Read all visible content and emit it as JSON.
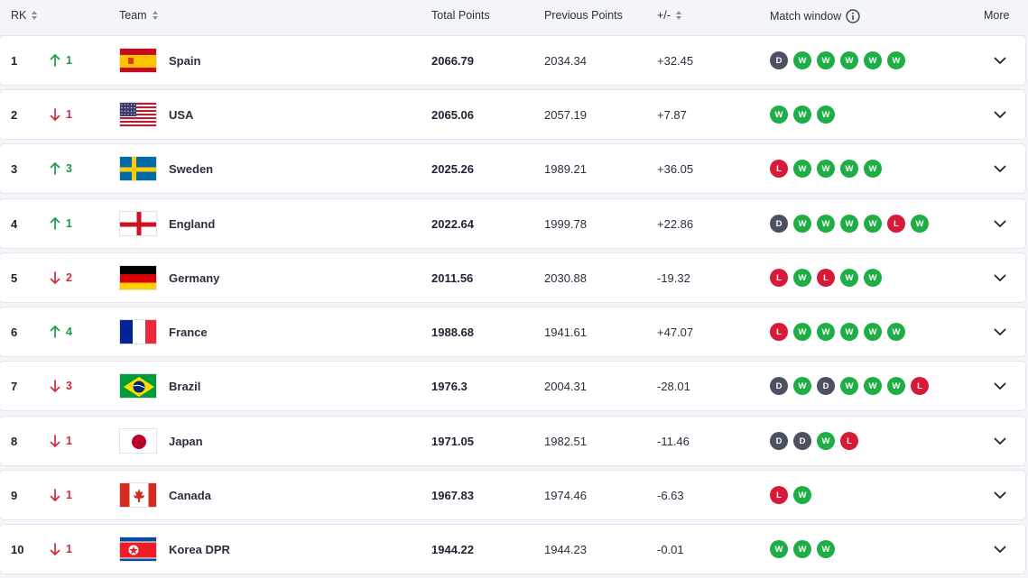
{
  "header": {
    "rank": "RK",
    "team": "Team",
    "total": "Total Points",
    "previous": "Previous Points",
    "diff": "+/-",
    "match_window": "Match window",
    "more": "More"
  },
  "colors": {
    "win": "#1fae45",
    "draw": "#4b5160",
    "loss": "#d61a37",
    "up": "#1a9a48",
    "down": "#d1283b"
  },
  "rows": [
    {
      "rank": "1",
      "dir": "up",
      "move": "1",
      "team": "Spain",
      "flag": "spain",
      "total": "2066.79",
      "previous": "2034.34",
      "diff": "+32.45",
      "results": [
        "D",
        "W",
        "W",
        "W",
        "W",
        "W"
      ]
    },
    {
      "rank": "2",
      "dir": "down",
      "move": "1",
      "team": "USA",
      "flag": "usa",
      "total": "2065.06",
      "previous": "2057.19",
      "diff": "+7.87",
      "results": [
        "W",
        "W",
        "W"
      ]
    },
    {
      "rank": "3",
      "dir": "up",
      "move": "3",
      "team": "Sweden",
      "flag": "sweden",
      "total": "2025.26",
      "previous": "1989.21",
      "diff": "+36.05",
      "results": [
        "L",
        "W",
        "W",
        "W",
        "W"
      ]
    },
    {
      "rank": "4",
      "dir": "up",
      "move": "1",
      "team": "England",
      "flag": "england",
      "total": "2022.64",
      "previous": "1999.78",
      "diff": "+22.86",
      "results": [
        "D",
        "W",
        "W",
        "W",
        "W",
        "L",
        "W"
      ]
    },
    {
      "rank": "5",
      "dir": "down",
      "move": "2",
      "team": "Germany",
      "flag": "germany",
      "total": "2011.56",
      "previous": "2030.88",
      "diff": "-19.32",
      "results": [
        "L",
        "W",
        "L",
        "W",
        "W"
      ]
    },
    {
      "rank": "6",
      "dir": "up",
      "move": "4",
      "team": "France",
      "flag": "france",
      "total": "1988.68",
      "previous": "1941.61",
      "diff": "+47.07",
      "results": [
        "L",
        "W",
        "W",
        "W",
        "W",
        "W"
      ]
    },
    {
      "rank": "7",
      "dir": "down",
      "move": "3",
      "team": "Brazil",
      "flag": "brazil",
      "total": "1976.3",
      "previous": "2004.31",
      "diff": "-28.01",
      "results": [
        "D",
        "W",
        "D",
        "W",
        "W",
        "W",
        "L"
      ]
    },
    {
      "rank": "8",
      "dir": "down",
      "move": "1",
      "team": "Japan",
      "flag": "japan",
      "total": "1971.05",
      "previous": "1982.51",
      "diff": "-11.46",
      "results": [
        "D",
        "D",
        "W",
        "L"
      ]
    },
    {
      "rank": "9",
      "dir": "down",
      "move": "1",
      "team": "Canada",
      "flag": "canada",
      "total": "1967.83",
      "previous": "1974.46",
      "diff": "-6.63",
      "results": [
        "L",
        "W"
      ]
    },
    {
      "rank": "10",
      "dir": "down",
      "move": "1",
      "team": "Korea DPR",
      "flag": "korea-dpr",
      "total": "1944.22",
      "previous": "1944.23",
      "diff": "-0.01",
      "results": [
        "W",
        "W",
        "W"
      ]
    }
  ]
}
